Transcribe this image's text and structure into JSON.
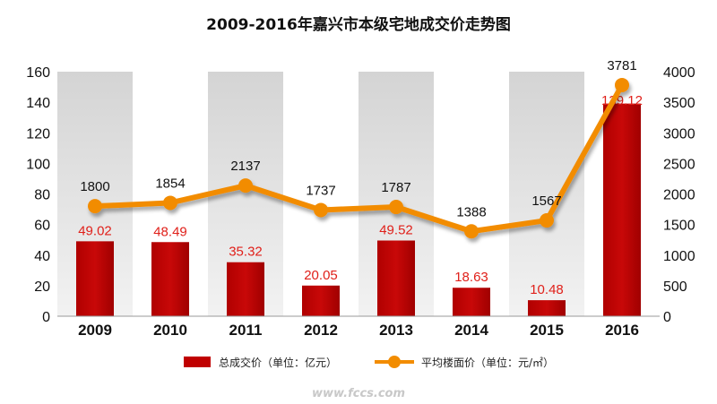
{
  "chart_data": {
    "type": "bar",
    "title": "2009-2016年嘉兴市本级宅地成交价走势图",
    "categories": [
      "2009",
      "2010",
      "2011",
      "2012",
      "2013",
      "2014",
      "2015",
      "2016"
    ],
    "series": [
      {
        "name": "总成交价（单位：亿元）",
        "type": "bar",
        "axis": "left",
        "color": "#c00000",
        "values": [
          49.02,
          48.49,
          35.32,
          20.05,
          49.52,
          18.63,
          10.48,
          139.12
        ],
        "labels": [
          "49.02",
          "48.49",
          "35.32",
          "20.05",
          "49.52",
          "18.63",
          "10.48",
          "139.12"
        ]
      },
      {
        "name": "平均楼面价（单位：元/㎡）",
        "type": "line",
        "axis": "right",
        "color": "#f28c00",
        "values": [
          1800,
          1854,
          2137,
          1737,
          1787,
          1388,
          1567,
          3781
        ],
        "labels": [
          "1800",
          "1854",
          "2137",
          "1737",
          "1787",
          "1388",
          "1567",
          "3781"
        ]
      }
    ],
    "y_left": {
      "ylim": [
        0,
        160
      ],
      "ticks": [
        "0",
        "20",
        "40",
        "60",
        "80",
        "100",
        "120",
        "140",
        "160"
      ]
    },
    "y_right": {
      "ylim": [
        0,
        4000
      ],
      "ticks": [
        "0",
        "500",
        "1000",
        "1500",
        "2000",
        "2500",
        "3000",
        "3500",
        "4000"
      ]
    },
    "legend_position": "bottom",
    "grid": false
  },
  "watermark": "www.fccs.com"
}
